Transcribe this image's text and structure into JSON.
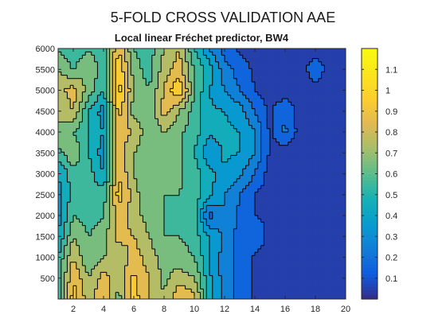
{
  "figure_title": "5-FOLD CROSS VALIDATION AAE",
  "chart_data": {
    "type": "heatmap",
    "subtype": "filled-contour",
    "title": "Local linear Fréchet predictor, BW4",
    "xlabel": "",
    "ylabel": "",
    "xlim": [
      1,
      20
    ],
    "ylim": [
      0,
      6000
    ],
    "x_ticks": [
      2,
      4,
      6,
      8,
      10,
      12,
      14,
      16,
      18,
      20
    ],
    "y_ticks": [
      500,
      1000,
      1500,
      2000,
      2500,
      3000,
      3500,
      4000,
      4500,
      5000,
      5500,
      6000
    ],
    "colormap": "parula",
    "colorbar": {
      "range": [
        0,
        1.2
      ],
      "ticks": [
        0.1,
        0.2,
        0.3,
        0.4,
        0.5,
        0.6,
        0.7,
        0.8,
        0.9,
        1,
        1.1
      ],
      "tick_labels": [
        "0.1",
        "0.2",
        "0.3",
        "0.4",
        "0.5",
        "0.6",
        "0.7",
        "0.8",
        "0.9",
        "1",
        "1.1"
      ],
      "placement": "right"
    },
    "grid": false,
    "x": [
      1,
      2,
      3,
      4,
      5,
      6,
      7,
      8,
      9,
      10,
      11,
      12,
      13,
      14,
      15,
      16,
      17,
      18,
      19,
      20
    ],
    "y": [
      0,
      500,
      1000,
      1500,
      2000,
      2500,
      3000,
      3500,
      4000,
      4500,
      5000,
      5500,
      6000
    ],
    "z": [
      [
        0.55,
        0.95,
        0.75,
        0.9,
        0.65,
        0.95,
        0.8,
        0.7,
        0.9,
        0.85,
        0.45,
        0.25,
        0.15,
        0.08,
        0.05,
        0.03,
        0.03,
        0.03,
        0.03,
        0.03
      ],
      [
        0.55,
        0.9,
        0.7,
        0.85,
        0.75,
        0.92,
        0.8,
        0.68,
        0.75,
        0.7,
        0.42,
        0.25,
        0.15,
        0.08,
        0.05,
        0.03,
        0.03,
        0.03,
        0.03,
        0.03
      ],
      [
        0.5,
        0.8,
        0.6,
        0.7,
        0.7,
        0.85,
        0.75,
        0.65,
        0.65,
        0.6,
        0.4,
        0.25,
        0.15,
        0.08,
        0.05,
        0.03,
        0.03,
        0.03,
        0.03,
        0.03
      ],
      [
        0.4,
        0.7,
        0.6,
        0.65,
        0.85,
        0.8,
        0.7,
        0.6,
        0.6,
        0.55,
        0.4,
        0.28,
        0.15,
        0.2,
        0.05,
        0.03,
        0.03,
        0.03,
        0.03,
        0.03
      ],
      [
        0.35,
        0.6,
        0.55,
        0.6,
        0.85,
        0.75,
        0.65,
        0.6,
        0.58,
        0.55,
        0.15,
        0.3,
        0.18,
        0.1,
        0.08,
        0.03,
        0.03,
        0.03,
        0.03,
        0.03
      ],
      [
        0.35,
        0.55,
        0.55,
        0.55,
        0.95,
        0.75,
        0.6,
        0.6,
        0.6,
        0.55,
        0.42,
        0.3,
        0.2,
        0.1,
        0.05,
        0.03,
        0.03,
        0.03,
        0.03,
        0.03
      ],
      [
        0.4,
        0.55,
        0.55,
        0.4,
        0.9,
        0.7,
        0.6,
        0.6,
        0.62,
        0.55,
        0.42,
        0.38,
        0.32,
        0.2,
        0.05,
        0.03,
        0.03,
        0.03,
        0.03,
        0.03
      ],
      [
        0.55,
        0.7,
        0.5,
        0.35,
        0.85,
        0.7,
        0.62,
        0.62,
        0.62,
        0.5,
        0.32,
        0.42,
        0.4,
        0.3,
        0.08,
        0.03,
        0.03,
        0.03,
        0.03,
        0.03
      ],
      [
        0.7,
        0.6,
        0.5,
        0.4,
        0.85,
        0.8,
        0.62,
        0.7,
        0.62,
        0.55,
        0.42,
        0.42,
        0.4,
        0.3,
        0.08,
        0.22,
        0.05,
        0.03,
        0.03,
        0.03
      ],
      [
        0.7,
        0.8,
        0.5,
        0.35,
        0.95,
        0.65,
        0.6,
        0.85,
        0.7,
        0.55,
        0.42,
        0.4,
        0.35,
        0.2,
        0.08,
        0.2,
        0.05,
        0.03,
        0.03,
        0.03
      ],
      [
        0.75,
        0.85,
        0.65,
        0.5,
        1.05,
        0.7,
        0.6,
        0.8,
        1.0,
        0.6,
        0.4,
        0.3,
        0.2,
        0.1,
        0.05,
        0.03,
        0.03,
        0.03,
        0.03,
        0.03
      ],
      [
        0.7,
        0.6,
        0.7,
        0.55,
        1.0,
        0.65,
        0.55,
        0.75,
        0.85,
        0.6,
        0.45,
        0.25,
        0.15,
        0.08,
        0.03,
        0.03,
        0.03,
        0.2,
        0.03,
        0.03
      ],
      [
        0.6,
        0.5,
        0.6,
        0.5,
        0.9,
        0.6,
        0.55,
        0.7,
        0.8,
        0.5,
        0.3,
        0.15,
        0.08,
        0.05,
        0.03,
        0.03,
        0.03,
        0.03,
        0.03,
        0.03
      ]
    ]
  }
}
